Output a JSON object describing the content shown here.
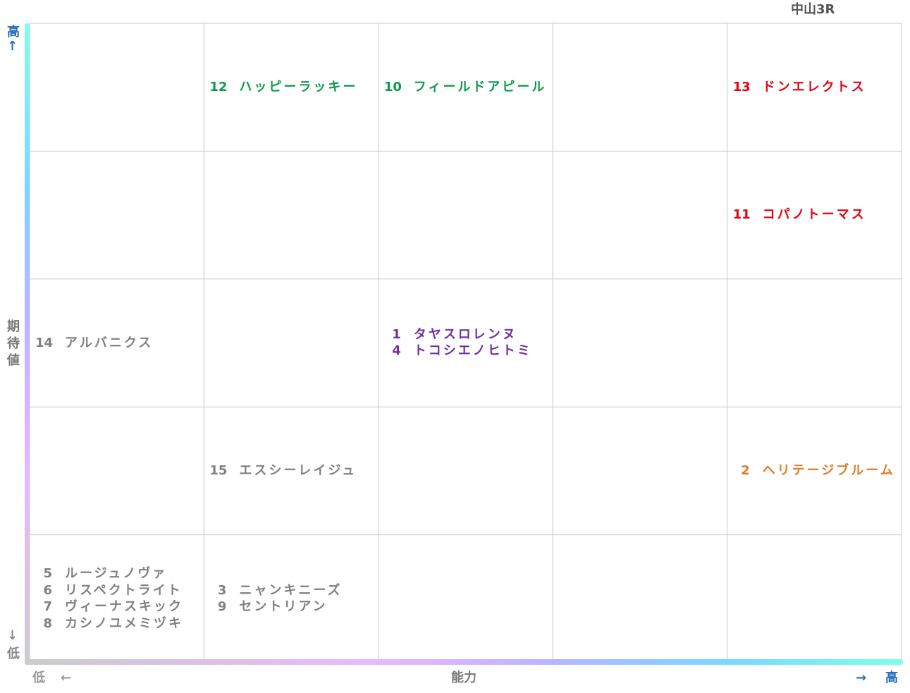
{
  "title": "中山3R",
  "y_axis": {
    "label": "期待値",
    "high": "高",
    "high_arrow": "↑",
    "low_arrow": "↓",
    "low": "低"
  },
  "x_axis": {
    "label": "能力",
    "low": "低",
    "low_arrow": "←",
    "high_arrow": "→",
    "high": "高"
  },
  "grid": {
    "rows": [
      [
        null,
        {
          "color": "#0b9b4b",
          "entries": [
            {
              "number": 12,
              "name": "ハッピーラッキー"
            }
          ]
        },
        {
          "color": "#0b9b4b",
          "entries": [
            {
              "number": 10,
              "name": "フィールドアピール"
            }
          ]
        },
        null,
        {
          "color": "#e60012",
          "entries": [
            {
              "number": 13,
              "name": "ドンエレクトス"
            }
          ]
        }
      ],
      [
        null,
        null,
        null,
        null,
        {
          "color": "#e60012",
          "entries": [
            {
              "number": 11,
              "name": "コパノトーマス"
            }
          ]
        }
      ],
      [
        {
          "color": "#808080",
          "entries": [
            {
              "number": 14,
              "name": "アルバニクス"
            }
          ]
        },
        null,
        {
          "color": "#7030a0",
          "entries": [
            {
              "number": 1,
              "name": "タヤスロレンヌ"
            },
            {
              "number": 4,
              "name": "トコシエノヒトミ"
            }
          ]
        },
        null,
        null
      ],
      [
        null,
        {
          "color": "#808080",
          "entries": [
            {
              "number": 15,
              "name": "エスシーレイジュ"
            }
          ]
        },
        null,
        null,
        {
          "color": "#e07b2c",
          "entries": [
            {
              "number": 2,
              "name": "ヘリテージブルーム"
            }
          ]
        }
      ],
      [
        {
          "color": "#808080",
          "entries": [
            {
              "number": 5,
              "name": "ルージュノヴァ"
            },
            {
              "number": 6,
              "name": "リスペクトライト"
            },
            {
              "number": 7,
              "name": "ヴィーナスキック"
            },
            {
              "number": 8,
              "name": "カシノユメミヅキ"
            }
          ]
        },
        {
          "color": "#808080",
          "entries": [
            {
              "number": 3,
              "name": "ニャンキニーズ"
            },
            {
              "number": 9,
              "name": "セントリアン"
            }
          ]
        },
        null,
        null,
        null
      ]
    ]
  }
}
